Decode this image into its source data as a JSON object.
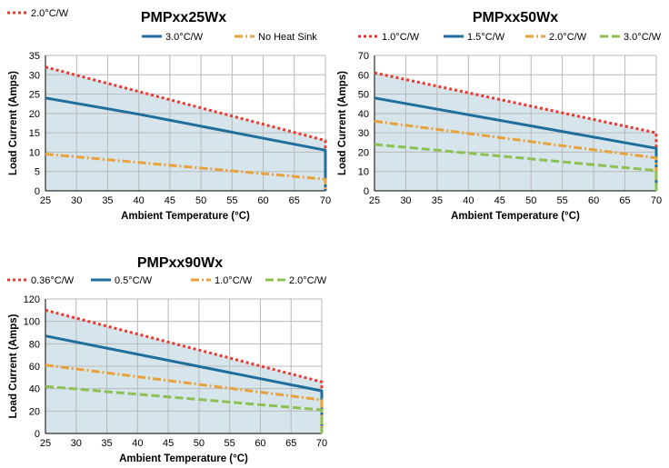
{
  "chart_data": [
    {
      "type": "line",
      "title": "PMPxx25Wx",
      "xlabel": "Ambient Temperature (°C)",
      "ylabel": "Load Current (Amps)",
      "xlim": [
        25,
        70
      ],
      "ylim": [
        0,
        35
      ],
      "x_ticks": [
        25,
        30,
        35,
        40,
        45,
        50,
        55,
        60,
        65,
        70
      ],
      "y_ticks": [
        0,
        5,
        10,
        15,
        20,
        25,
        30,
        35
      ],
      "grid": true,
      "shaded_area": true,
      "series": [
        {
          "name": "2.0°C/W",
          "color": "#e8382f",
          "style": "dotted",
          "x": [
            25,
            70,
            70
          ],
          "y": [
            32,
            13,
            0
          ]
        },
        {
          "name": "3.0°C/W",
          "color": "#1f6e9c",
          "style": "solid",
          "x": [
            25,
            40,
            70,
            70
          ],
          "y": [
            24,
            19.8,
            10.5,
            0
          ]
        },
        {
          "name": "No Heat Sink",
          "color": "#e9a23b",
          "style": "dashdot",
          "x": [
            25,
            70,
            70
          ],
          "y": [
            9.5,
            3,
            0
          ]
        }
      ]
    },
    {
      "type": "line",
      "title": "PMPxx50Wx",
      "xlabel": "Ambient Temperature (°C)",
      "ylabel": "Load Current (Amps)",
      "xlim": [
        25,
        70
      ],
      "ylim": [
        0,
        70
      ],
      "x_ticks": [
        25,
        30,
        35,
        40,
        45,
        50,
        55,
        60,
        65,
        70
      ],
      "y_ticks": [
        0,
        10,
        20,
        30,
        40,
        50,
        60,
        70
      ],
      "grid": true,
      "shaded_area": true,
      "series": [
        {
          "name": "1.0°C/W",
          "color": "#e8382f",
          "style": "dotted",
          "x": [
            25,
            70,
            70
          ],
          "y": [
            61,
            30,
            0
          ]
        },
        {
          "name": "1.5°C/W",
          "color": "#1f6e9c",
          "style": "solid",
          "x": [
            25,
            70,
            70
          ],
          "y": [
            48,
            22,
            0
          ]
        },
        {
          "name": "2.0°C/W",
          "color": "#e9a23b",
          "style": "dashdot",
          "x": [
            25,
            70,
            70
          ],
          "y": [
            36,
            17,
            0
          ]
        },
        {
          "name": "3.0°C/W",
          "color": "#8cc152",
          "style": "dashed",
          "x": [
            25,
            70,
            70
          ],
          "y": [
            24,
            10.5,
            0
          ]
        }
      ]
    },
    {
      "type": "line",
      "title": "PMPxx90Wx",
      "xlabel": "Ambient Temperature (°C)",
      "ylabel": "Load Current (Amps)",
      "xlim": [
        25,
        70
      ],
      "ylim": [
        0,
        120
      ],
      "x_ticks": [
        25,
        30,
        35,
        40,
        45,
        50,
        55,
        60,
        65,
        70
      ],
      "y_ticks": [
        0,
        20,
        40,
        60,
        80,
        100,
        120
      ],
      "grid": true,
      "shaded_area": true,
      "series": [
        {
          "name": "0.36°C/W",
          "color": "#e8382f",
          "style": "dotted",
          "x": [
            25,
            70,
            70
          ],
          "y": [
            110,
            46,
            0
          ]
        },
        {
          "name": "0.5°C/W",
          "color": "#1f6e9c",
          "style": "solid",
          "x": [
            25,
            70,
            70
          ],
          "y": [
            87,
            38,
            0
          ]
        },
        {
          "name": "1.0°C/W",
          "color": "#e9a23b",
          "style": "dashdot",
          "x": [
            25,
            70,
            70
          ],
          "y": [
            61,
            30,
            0
          ]
        },
        {
          "name": "2.0°C/W",
          "color": "#8cc152",
          "style": "dashed",
          "x": [
            25,
            70,
            70
          ],
          "y": [
            42,
            21,
            0
          ]
        }
      ]
    }
  ],
  "colors": {
    "shade": "#d6e5ec",
    "grid": "#b9b9b9"
  }
}
